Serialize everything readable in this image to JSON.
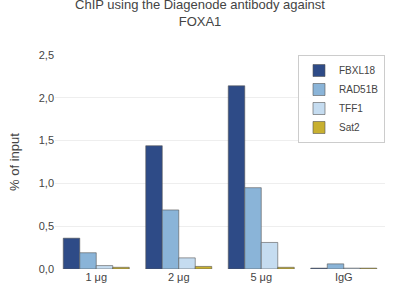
{
  "chart_data": {
    "type": "bar",
    "title": "ChIP using the Diagenode antibody against\nFOXA1",
    "ylabel": "% of input",
    "categories": [
      "1 μg",
      "2 μg",
      "5 μg",
      "IgG"
    ],
    "series": [
      {
        "name": "FBXL18",
        "color": "#2E4B87",
        "values": [
          0.36,
          1.44,
          2.14,
          0.01
        ]
      },
      {
        "name": "RAD51B",
        "color": "#8AB4D8",
        "values": [
          0.19,
          0.69,
          0.95,
          0.06
        ]
      },
      {
        "name": "TFF1",
        "color": "#C5DCF0",
        "values": [
          0.04,
          0.13,
          0.31,
          0.01
        ]
      },
      {
        "name": "Sat2",
        "color": "#C8B030",
        "values": [
          0.02,
          0.03,
          0.02,
          0.01
        ]
      }
    ],
    "ylim": [
      0,
      2.5
    ],
    "yticks": [
      {
        "value": 0.0,
        "label": "0,0"
      },
      {
        "value": 0.5,
        "label": "0,5"
      },
      {
        "value": 1.0,
        "label": "1,0"
      },
      {
        "value": 1.5,
        "label": "1,5"
      },
      {
        "value": 2.0,
        "label": "2,0"
      },
      {
        "value": 2.5,
        "label": "2,5"
      }
    ],
    "grid": true,
    "legend": "upper right"
  }
}
